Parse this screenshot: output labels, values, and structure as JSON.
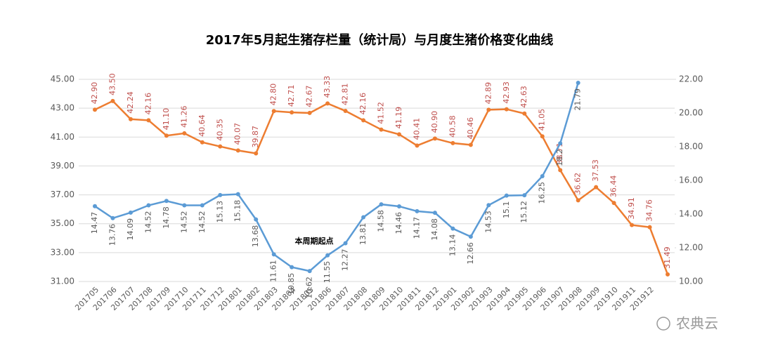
{
  "chart_data": {
    "type": "line",
    "title": "2017年5月起生猪存栏量（统计局）与月度生猪价格变化曲线",
    "categories": [
      "201705",
      "201706",
      "201707",
      "201708",
      "201709",
      "201710",
      "201711",
      "201712",
      "201801",
      "201802",
      "201803",
      "201804",
      "201805",
      "201806",
      "201807",
      "201808",
      "201809",
      "201810",
      "201811",
      "201812",
      "201901",
      "201902",
      "201903",
      "201904",
      "201905",
      "201906",
      "201907",
      "201908",
      "201909",
      "201910",
      "201911",
      "201912",
      null
    ],
    "series": [
      {
        "name": "生猪存栏量",
        "color": "#ED7D31",
        "axis": "y",
        "values": [
          42.9,
          43.5,
          42.24,
          42.16,
          41.1,
          41.26,
          40.64,
          40.35,
          40.07,
          39.87,
          42.8,
          42.71,
          42.67,
          43.33,
          42.81,
          42.16,
          41.52,
          41.19,
          40.41,
          40.9,
          40.58,
          40.46,
          42.89,
          42.93,
          42.63,
          41.05,
          38.71,
          36.62,
          37.53,
          36.44,
          34.91,
          34.76,
          31.49
        ],
        "value_labels": [
          "42.90",
          "43.50",
          "42.24",
          "42.16",
          "41.10",
          "41.26",
          "40.64",
          "40.35",
          "40.07",
          "39.87",
          "42.80",
          "42.71",
          "42.67",
          "43.33",
          "42.81",
          "42.16",
          "41.52",
          "41.19",
          "40.41",
          "40.90",
          "40.58",
          "40.46",
          "42.89",
          "42.93",
          "42.63",
          "41.05",
          "38.71",
          "36.62",
          "37.53",
          "36.44",
          "34.91",
          "34.76",
          "31.49"
        ]
      },
      {
        "name": "生猪价格",
        "color": "#5B9BD5",
        "axis": "y2",
        "values": [
          14.47,
          13.76,
          14.09,
          14.52,
          14.78,
          14.52,
          14.52,
          15.13,
          15.18,
          13.68,
          11.61,
          10.85,
          10.62,
          11.55,
          12.27,
          13.81,
          14.58,
          14.46,
          14.17,
          14.08,
          13.14,
          12.66,
          14.53,
          15.1,
          15.12,
          16.25,
          18.2,
          21.79,
          null,
          null,
          null,
          null,
          null
        ]
      }
    ],
    "ylim": [
      31,
      45
    ],
    "yticks": [
      {
        "value": 31,
        "label": "31.00"
      },
      {
        "value": 33,
        "label": "33.00"
      },
      {
        "value": 35,
        "label": "35.00"
      },
      {
        "value": 37,
        "label": "37.00"
      },
      {
        "value": 39,
        "label": "39.00"
      },
      {
        "value": 41,
        "label": "41.00"
      },
      {
        "value": 43,
        "label": "43.00"
      },
      {
        "value": 45,
        "label": "45.00"
      }
    ],
    "y2lim": [
      10,
      22
    ],
    "y2ticks": [
      {
        "value": 10,
        "label": "10.00"
      },
      {
        "value": 12,
        "label": "12.00"
      },
      {
        "value": 14,
        "label": "14.00"
      },
      {
        "value": 16,
        "label": "16.00"
      },
      {
        "value": 18,
        "label": "18.00"
      },
      {
        "value": 20,
        "label": "20.00"
      },
      {
        "value": 22,
        "label": "22.00"
      }
    ],
    "grid": true,
    "annotation": "本周期起点",
    "watermark": "农典云"
  }
}
